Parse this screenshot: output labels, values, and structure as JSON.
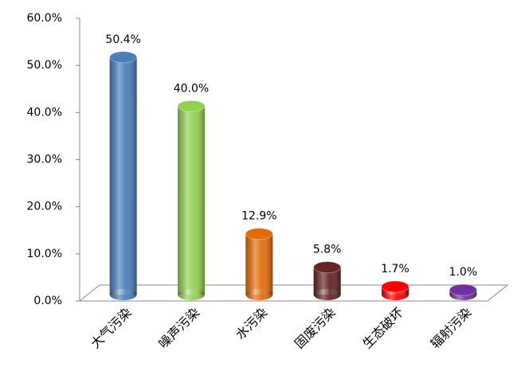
{
  "chart_data": {
    "type": "bar",
    "categories": [
      "大气污染",
      "噪声污染",
      "水污染",
      "固废污染",
      "生态破坏",
      "辐射污染"
    ],
    "values": [
      50.4,
      40.0,
      12.9,
      5.8,
      1.7,
      1.0
    ],
    "value_labels": [
      "50.4%",
      "40.0%",
      "12.9%",
      "5.8%",
      "1.7%",
      "1.0%"
    ],
    "colors": [
      "#4a7ebb",
      "#92d050",
      "#e36c0a",
      "#632523",
      "#ff0000",
      "#7030a0"
    ],
    "ylim": [
      0,
      60
    ],
    "yticks": [
      {
        "value": 0,
        "label": "0.0%"
      },
      {
        "value": 10,
        "label": "10.0%"
      },
      {
        "value": 20,
        "label": "20.0%"
      },
      {
        "value": 30,
        "label": "30.0%"
      },
      {
        "value": 40,
        "label": "40.0%"
      },
      {
        "value": 50,
        "label": "50.0%"
      },
      {
        "value": 60,
        "label": "60.0%"
      }
    ]
  }
}
